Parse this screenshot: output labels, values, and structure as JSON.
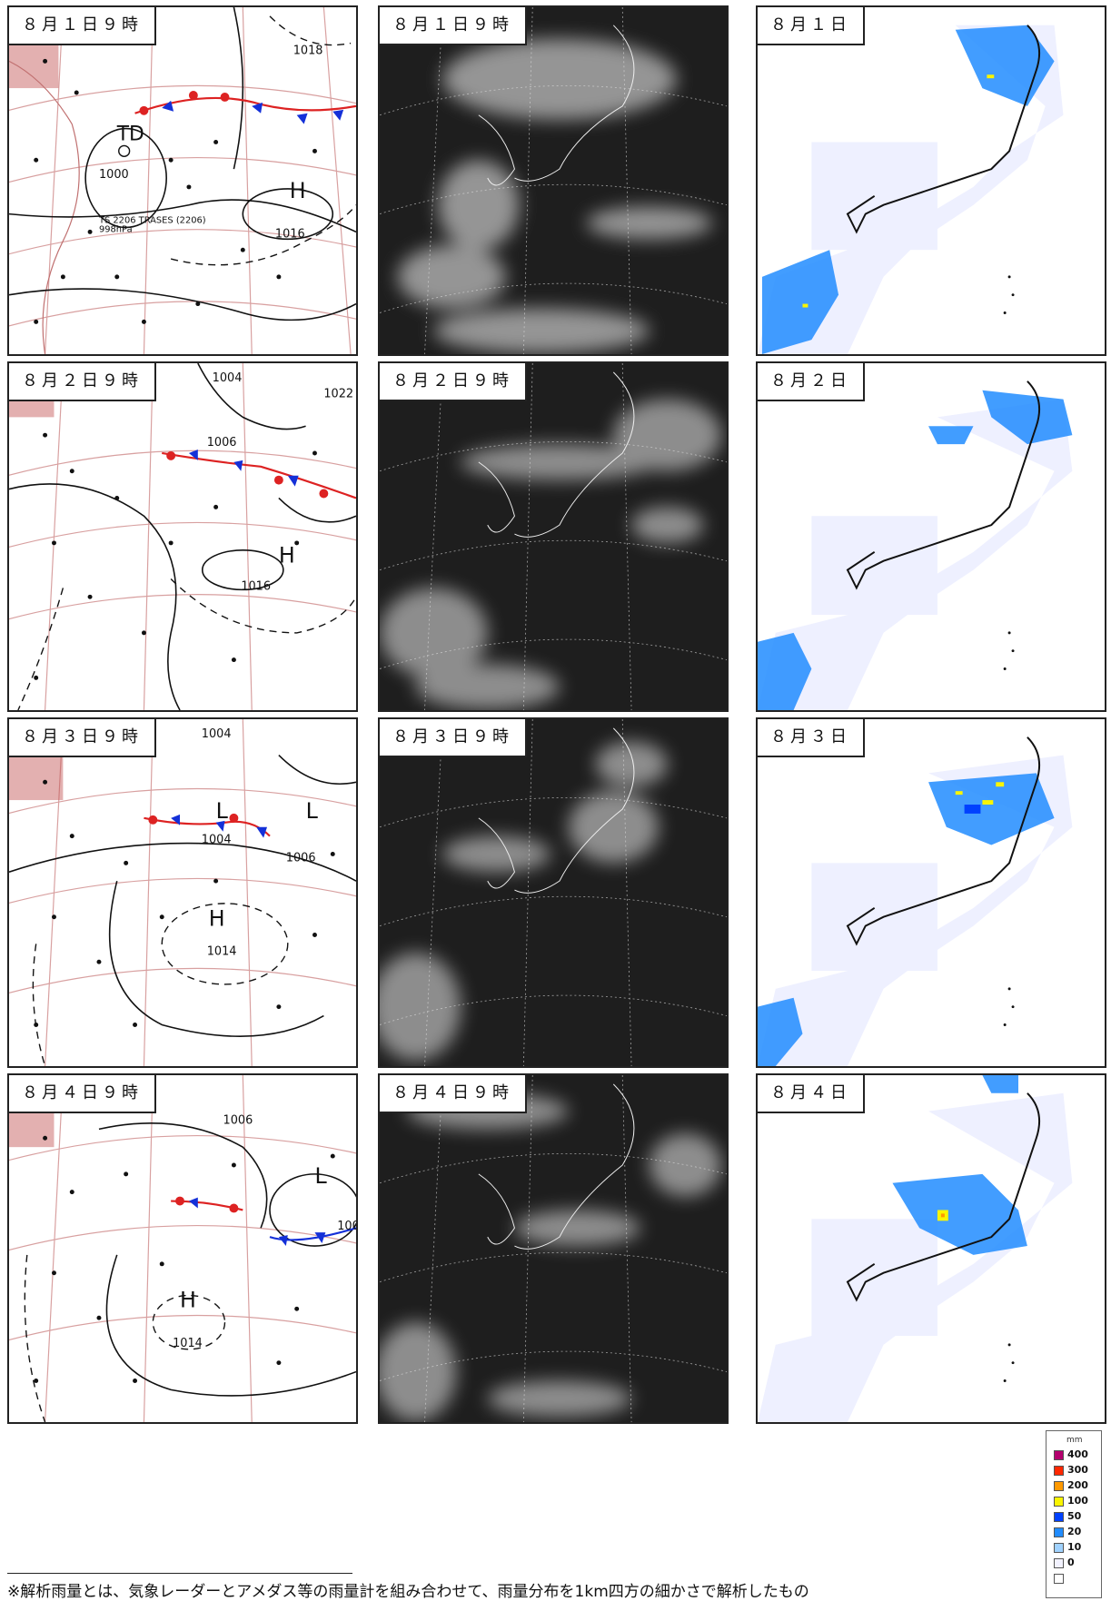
{
  "rows": [
    {
      "weather_map_label": "８月１日９時",
      "satellite_label": "８月１日９時",
      "rain_label": "８月１日",
      "isobars": [
        "1018",
        "1000",
        "1016"
      ],
      "storm_label": "TS 2206 TRASES (2206)",
      "storm_pressure": "998hPa"
    },
    {
      "weather_map_label": "８月２日９時",
      "satellite_label": "８月２日９時",
      "rain_label": "８月２日",
      "isobars": [
        "1004",
        "1022",
        "1006",
        "1016"
      ]
    },
    {
      "weather_map_label": "８月３日９時",
      "satellite_label": "８月３日９時",
      "rain_label": "８月３日",
      "isobars": [
        "1004",
        "1004",
        "1006",
        "1014"
      ]
    },
    {
      "weather_map_label": "８月４日９時",
      "satellite_label": "８月４日９時",
      "rain_label": "８月４日",
      "isobars": [
        "1006",
        "1014",
        "100"
      ]
    }
  ],
  "legend": {
    "unit": "mm",
    "items": [
      {
        "value": "400",
        "color": "#b4006e"
      },
      {
        "value": "300",
        "color": "#ff2800"
      },
      {
        "value": "200",
        "color": "#ff9900"
      },
      {
        "value": "100",
        "color": "#faf500"
      },
      {
        "value": "50",
        "color": "#0041ff"
      },
      {
        "value": "20",
        "color": "#218cff"
      },
      {
        "value": "10",
        "color": "#a0d2ff"
      },
      {
        "value": "0",
        "color": "#f2f2ff"
      },
      {
        "value": "",
        "color": "#ffffff"
      }
    ]
  },
  "footnote": "※解析雨量とは、気象レーダーとアメダス等の雨量計を組み合わせて、雨量分布を1km四方の細かさで解析したもの"
}
